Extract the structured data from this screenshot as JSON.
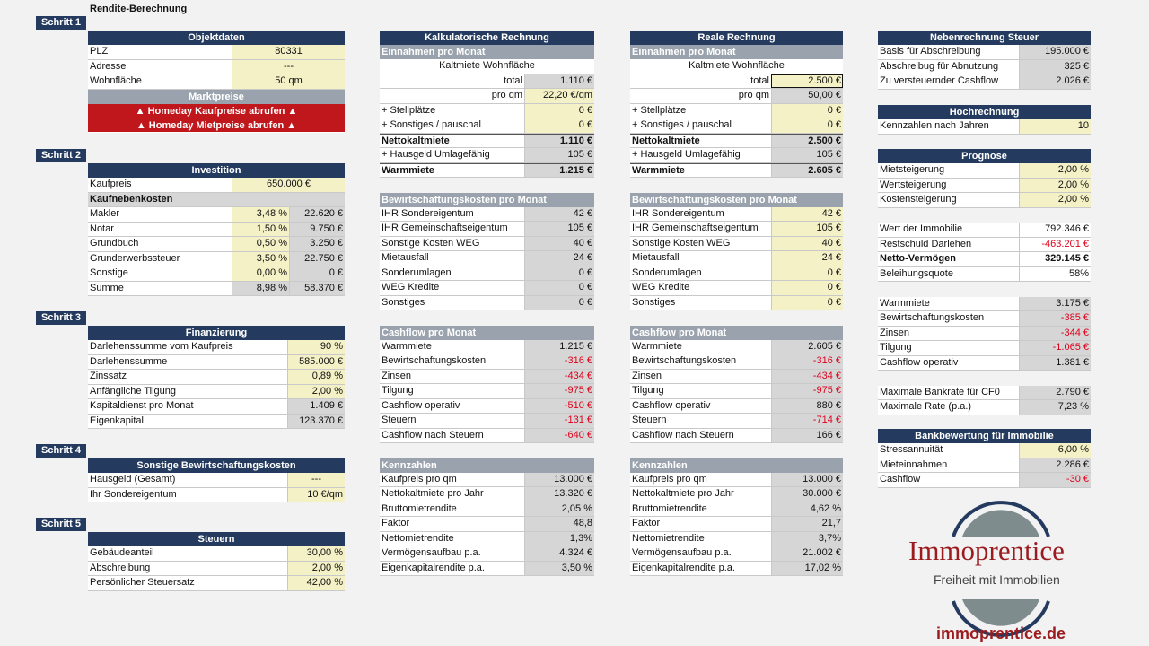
{
  "title": "Rendite-Berechnung",
  "steps": [
    "Schritt 1",
    "Schritt 2",
    "Schritt 3",
    "Schritt 4",
    "Schritt 5"
  ],
  "objekt": {
    "header": "Objektdaten",
    "rows": [
      [
        "PLZ",
        "80331"
      ],
      [
        "Adresse",
        "---"
      ],
      [
        "Wohnfläche",
        "50 qm"
      ]
    ],
    "market_header": "Marktpreise",
    "btn_kauf": "▲ Homeday Kaufpreise abrufen ▲",
    "btn_miet": "▲ Homeday Mietpreise abrufen ▲"
  },
  "investition": {
    "header": "Investition",
    "kaufpreis": [
      "Kaufpreis",
      "650.000 €"
    ],
    "nebenkosten_label": "Kaufnebenkosten",
    "rows": [
      [
        "Makler",
        "3,48 %",
        "22.620 €"
      ],
      [
        "Notar",
        "1,50 %",
        "9.750 €"
      ],
      [
        "Grundbuch",
        "0,50 %",
        "3.250 €"
      ],
      [
        "Grunderwerbssteuer",
        "3,50 %",
        "22.750 €"
      ],
      [
        "Sonstige",
        "0,00 %",
        "0 €"
      ],
      [
        "Summe",
        "8,98 %",
        "58.370 €"
      ]
    ]
  },
  "finanzierung": {
    "header": "Finanzierung",
    "rows": [
      [
        "Darlehenssumme vom Kaufpreis",
        "90 %"
      ],
      [
        "Darlehenssumme",
        "585.000 €"
      ],
      [
        "Zinssatz",
        "0,89 %"
      ],
      [
        "Anfängliche Tilgung",
        "2,00 %"
      ],
      [
        "Kapitaldienst pro Monat",
        "1.409 €"
      ],
      [
        "Eigenkapital",
        "123.370 €"
      ]
    ]
  },
  "sonstige": {
    "header": "Sonstige Bewirtschaftungskosten",
    "rows": [
      [
        "Hausgeld (Gesamt)",
        "---"
      ],
      [
        "Ihr Sondereigentum",
        "10 €/qm"
      ]
    ]
  },
  "steuern": {
    "header": "Steuern",
    "rows": [
      [
        "Gebäudeanteil",
        "30,00 %"
      ],
      [
        "Abschreibung",
        "2,00 %"
      ],
      [
        "Persönlicher Steuersatz",
        "42,00 %"
      ]
    ]
  },
  "kalk": {
    "header": "Kalkulatorische Rechnung",
    "einnahmen_label": "Einnahmen pro Monat",
    "kaltmiete_label": "Kaltmiete Wohnfläche",
    "total": [
      "total",
      "1.110 €"
    ],
    "proqm": [
      "pro qm",
      "22,20 €/qm"
    ],
    "rows1": [
      [
        "+ Stellplätze",
        "0 €"
      ],
      [
        "+ Sonstiges / pauschal",
        "0 €"
      ]
    ],
    "netto": [
      "Nettokaltmiete",
      "1.110 €"
    ],
    "hausgeld": [
      "+ Hausgeld Umlagefähig",
      "105 €"
    ],
    "warm": [
      "Warmmiete",
      "1.215 €"
    ],
    "bew_label": "Bewirtschaftungskosten pro Monat",
    "bew": [
      [
        "IHR Sondereigentum",
        "42 €"
      ],
      [
        "IHR Gemeinschaftseigentum",
        "105 €"
      ],
      [
        "Sonstige Kosten WEG",
        "40 €"
      ],
      [
        "Mietausfall",
        "24 €"
      ],
      [
        "Sonderumlagen",
        "0 €"
      ],
      [
        "WEG Kredite",
        "0 €"
      ],
      [
        "Sonstiges",
        "0 €"
      ]
    ],
    "cf_label": "Cashflow pro Monat",
    "cf": [
      [
        "Warmmiete",
        "1.215 €",
        false
      ],
      [
        "Bewirtschaftungskosten",
        "-316 €",
        true
      ],
      [
        "Zinsen",
        "-434 €",
        true
      ],
      [
        "Tilgung",
        "-975 €",
        true
      ],
      [
        "Cashflow operativ",
        "-510 €",
        true
      ],
      [
        "Steuern",
        "-131 €",
        true
      ],
      [
        "Cashflow nach Steuern",
        "-640 €",
        true
      ]
    ],
    "kz_label": "Kennzahlen",
    "kz": [
      [
        "Kaufpreis pro qm",
        "13.000 €"
      ],
      [
        "Nettokaltmiete pro Jahr",
        "13.320 €"
      ],
      [
        "Bruttomietrendite",
        "2,05 %"
      ],
      [
        "Faktor",
        "48,8"
      ],
      [
        "Nettomietrendite",
        "1,3%"
      ],
      [
        "Vermögensaufbau p.a.",
        "4.324 €"
      ],
      [
        "Eigenkapitalrendite p.a.",
        "3,50 %"
      ]
    ]
  },
  "real": {
    "header": "Reale Rechnung",
    "einnahmen_label": "Einnahmen pro Monat",
    "kaltmiete_label": "Kaltmiete Wohnfläche",
    "total": [
      "total",
      "2.500 €"
    ],
    "proqm": [
      "pro qm",
      "50,00 €"
    ],
    "rows1": [
      [
        "+ Stellplätze",
        "0 €"
      ],
      [
        "+ Sonstiges / pauschal",
        "0 €"
      ]
    ],
    "netto": [
      "Nettokaltmiete",
      "2.500 €"
    ],
    "hausgeld": [
      "+ Hausgeld Umlagefähig",
      "105 €"
    ],
    "warm": [
      "Warmmiete",
      "2.605 €"
    ],
    "bew_label": "Bewirtschaftungskosten pro Monat",
    "bew": [
      [
        "IHR Sondereigentum",
        "42 €"
      ],
      [
        "IHR Gemeinschaftseigentum",
        "105 €"
      ],
      [
        "Sonstige Kosten WEG",
        "40 €"
      ],
      [
        "Mietausfall",
        "24 €"
      ],
      [
        "Sonderumlagen",
        "0 €"
      ],
      [
        "WEG Kredite",
        "0 €"
      ],
      [
        "Sonstiges",
        "0 €"
      ]
    ],
    "cf_label": "Cashflow pro Monat",
    "cf": [
      [
        "Warmmiete",
        "2.605 €",
        false
      ],
      [
        "Bewirtschaftungskosten",
        "-316 €",
        true
      ],
      [
        "Zinsen",
        "-434 €",
        true
      ],
      [
        "Tilgung",
        "-975 €",
        true
      ],
      [
        "Cashflow operativ",
        "880 €",
        false
      ],
      [
        "Steuern",
        "-714 €",
        true
      ],
      [
        "Cashflow nach Steuern",
        "166 €",
        false
      ]
    ],
    "kz_label": "Kennzahlen",
    "kz": [
      [
        "Kaufpreis pro qm",
        "13.000 €"
      ],
      [
        "Nettokaltmiete pro Jahr",
        "30.000 €"
      ],
      [
        "Bruttomietrendite",
        "4,62 %"
      ],
      [
        "Faktor",
        "21,7"
      ],
      [
        "Nettomietrendite",
        "3,7%"
      ],
      [
        "Vermögensaufbau p.a.",
        "21.002 €"
      ],
      [
        "Eigenkapitalrendite p.a.",
        "17,02 %"
      ]
    ]
  },
  "nebensteuer": {
    "header": "Nebenrechnung Steuer",
    "rows": [
      [
        "Basis für Abschreibung",
        "195.000 €"
      ],
      [
        "Abschreibug für Abnutzung",
        "325 €"
      ],
      [
        "Zu versteuernder Cashflow",
        "2.026 €"
      ]
    ]
  },
  "hoch": {
    "header": "Hochrechnung",
    "rows": [
      [
        "Kennzahlen nach Jahren",
        "10"
      ]
    ]
  },
  "prognose": {
    "header": "Prognose",
    "rows1": [
      [
        "Mietsteigerung",
        "2,00 %"
      ],
      [
        "Wertsteigerung",
        "2,00 %"
      ],
      [
        "Kostensteigerung",
        "2,00 %"
      ]
    ],
    "rows2": [
      [
        "Wert der Immobilie",
        "792.346 €",
        false
      ],
      [
        "Restschuld Darlehen",
        "-463.201 €",
        true
      ],
      [
        "Netto-Vermögen",
        "329.145 €",
        false
      ],
      [
        "Beleihungsquote",
        "58%",
        false
      ]
    ],
    "rows3": [
      [
        "Warmmiete",
        "3.175 €",
        false
      ],
      [
        "Bewirtschaftungskosten",
        "-385 €",
        true
      ],
      [
        "Zinsen",
        "-344 €",
        true
      ],
      [
        "Tilgung",
        "-1.065 €",
        true
      ],
      [
        "Cashflow operativ",
        "1.381 €",
        false
      ]
    ],
    "rows4": [
      [
        "Maximale Bankrate für CF0",
        "2.790 €"
      ],
      [
        "Maximale Rate (p.a.)",
        "7,23 %"
      ]
    ]
  },
  "bank": {
    "header": "Bankbewertung für Immobilie",
    "rows": [
      [
        "Stressannuität",
        "6,00 %",
        false
      ],
      [
        "Mieteinnahmen",
        "2.286 €",
        false
      ],
      [
        "Cashflow",
        "-30 €",
        true
      ]
    ]
  },
  "logo": {
    "name": "Immoprentice",
    "tagline": "Freiheit mit Immobilien",
    "url": "immoprentice.de",
    "colors": {
      "brand": "#9b1b1f",
      "grey": "#7e8c8d",
      "navy": "#243a5e"
    }
  }
}
